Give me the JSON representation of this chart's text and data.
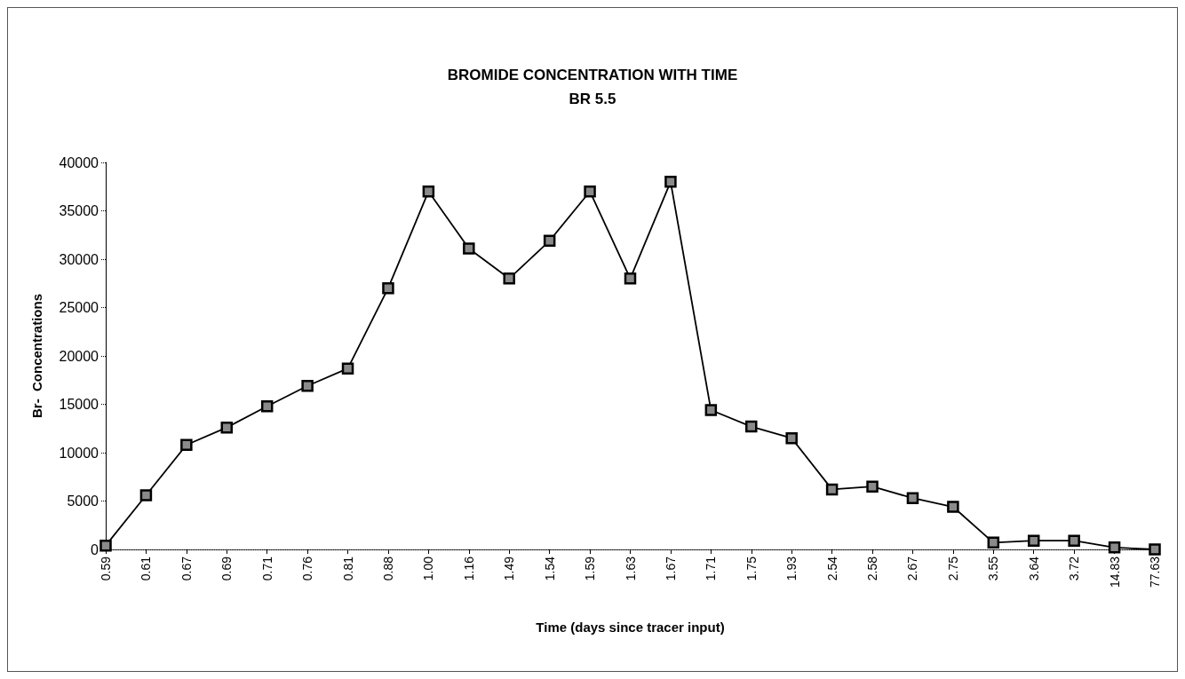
{
  "chart_data": {
    "type": "line",
    "title": "BROMIDE CONCENTRATION WITH TIME",
    "subtitle": "BR 5.5",
    "xlabel": "Time (days since tracer input)",
    "ylabel": "Br-  Concentrations",
    "categories": [
      "0.59",
      "0.61",
      "0.67",
      "0.69",
      "0.71",
      "0.76",
      "0.81",
      "0.88",
      "1.00",
      "1.16",
      "1.49",
      "1.54",
      "1.59",
      "1.63",
      "1.67",
      "1.71",
      "1.75",
      "1.93",
      "2.54",
      "2.58",
      "2.67",
      "2.75",
      "3.55",
      "3.64",
      "3.72",
      "14.83",
      "77.63"
    ],
    "series": [
      {
        "color": "#000000",
        "values": [
          400,
          5600,
          10800,
          12600,
          14800,
          16900,
          18700,
          27000,
          37000,
          31100,
          28000,
          31900,
          37000,
          28000,
          38000,
          14400,
          12700,
          11500,
          6200,
          6500,
          5300,
          4400,
          700,
          900,
          900,
          200,
          0
        ]
      }
    ],
    "ylim": [
      0,
      40000
    ],
    "yticks": [
      0,
      5000,
      10000,
      15000,
      20000,
      25000,
      30000,
      35000,
      40000
    ],
    "grid": false,
    "marker": "square",
    "line_style": "solid"
  }
}
